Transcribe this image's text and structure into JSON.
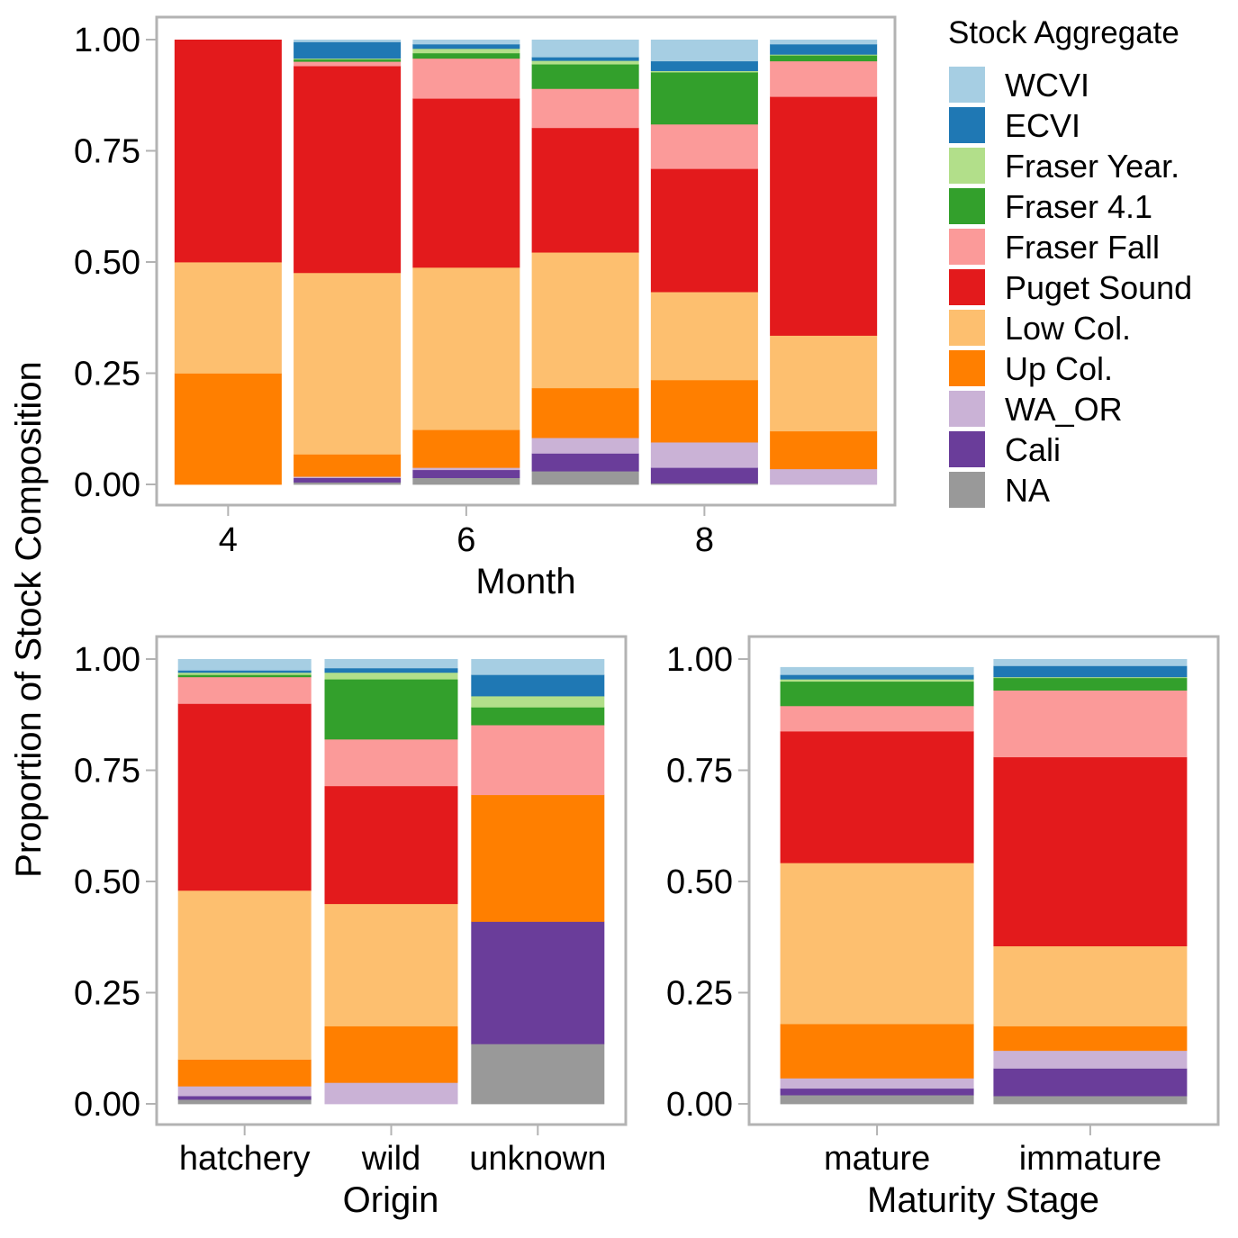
{
  "shared": {
    "ylabel": "Proportion of Stock Composition",
    "ylim": [
      0,
      1
    ],
    "yticks": [
      "0.00",
      "0.25",
      "0.50",
      "0.75",
      "1.00"
    ],
    "ytick_values": [
      0,
      0.25,
      0.5,
      0.75,
      1
    ]
  },
  "legend": {
    "title": "Stock Aggregate",
    "placement": "right of top panel",
    "items": [
      {
        "label": "WCVI",
        "color": "#a6cee3"
      },
      {
        "label": "ECVI",
        "color": "#1f78b4"
      },
      {
        "label": "Fraser Year.",
        "color": "#b2df8a"
      },
      {
        "label": "Fraser 4.1",
        "color": "#33a02c"
      },
      {
        "label": "Fraser Fall",
        "color": "#fb9a99"
      },
      {
        "label": "Puget Sound",
        "color": "#e31a1c"
      },
      {
        "label": "Low Col.",
        "color": "#fdbf6f"
      },
      {
        "label": "Up Col.",
        "color": "#ff7f00"
      },
      {
        "label": "WA_OR",
        "color": "#cab2d6"
      },
      {
        "label": "Cali",
        "color": "#6a3d9a"
      },
      {
        "label": "NA",
        "color": "#999999"
      }
    ]
  },
  "chart_data": [
    {
      "type": "bar",
      "stacked": true,
      "xlabel": "Month",
      "x_type": "numeric",
      "x": [
        4,
        5,
        6,
        7,
        8,
        9
      ],
      "xticks": [
        "4",
        "6",
        "8"
      ],
      "xtick_values": [
        4,
        6,
        8
      ],
      "xlim": [
        3.4,
        9.6
      ],
      "ylabel": "Proportion of Stock Composition",
      "ylim": [
        0,
        1
      ],
      "stack_order_bottom_to_top": [
        "NA",
        "Cali",
        "WA_OR",
        "Up Col.",
        "Low Col.",
        "Puget Sound",
        "Fraser Fall",
        "Fraser 4.1",
        "Fraser Year.",
        "ECVI",
        "WCVI"
      ],
      "series": [
        {
          "name": "NA",
          "values": [
            0.0,
            0.005,
            0.015,
            0.03,
            0.003,
            0.0
          ]
        },
        {
          "name": "Cali",
          "values": [
            0.0,
            0.01,
            0.018,
            0.04,
            0.035,
            0.0
          ]
        },
        {
          "name": "WA_OR",
          "values": [
            0.0,
            0.003,
            0.005,
            0.035,
            0.057,
            0.035
          ]
        },
        {
          "name": "Up Col.",
          "values": [
            0.25,
            0.05,
            0.085,
            0.112,
            0.14,
            0.085
          ]
        },
        {
          "name": "Low Col.",
          "values": [
            0.25,
            0.408,
            0.365,
            0.305,
            0.198,
            0.215
          ]
        },
        {
          "name": "Puget Sound",
          "values": [
            0.5,
            0.465,
            0.38,
            0.28,
            0.277,
            0.537
          ]
        },
        {
          "name": "Fraser Fall",
          "values": [
            0.0,
            0.01,
            0.09,
            0.088,
            0.1,
            0.08
          ]
        },
        {
          "name": "Fraser 4.1",
          "values": [
            0.0,
            0.005,
            0.012,
            0.055,
            0.117,
            0.013
          ]
        },
        {
          "name": "Fraser Year.",
          "values": [
            0.0,
            0.002,
            0.01,
            0.008,
            0.003,
            0.002
          ]
        },
        {
          "name": "ECVI",
          "values": [
            0.0,
            0.037,
            0.01,
            0.008,
            0.022,
            0.023
          ]
        },
        {
          "name": "WCVI",
          "values": [
            0.0,
            0.005,
            0.01,
            0.039,
            0.048,
            0.01
          ]
        }
      ]
    },
    {
      "type": "bar",
      "stacked": true,
      "xlabel": "Origin",
      "x_type": "categorical",
      "categories": [
        "hatchery",
        "wild",
        "unknown"
      ],
      "ylabel": "Proportion of Stock Composition",
      "ylim": [
        0,
        1
      ],
      "series": [
        {
          "name": "NA",
          "values": [
            0.01,
            0.0,
            0.135
          ]
        },
        {
          "name": "Cali",
          "values": [
            0.008,
            0.0,
            0.275
          ]
        },
        {
          "name": "WA_OR",
          "values": [
            0.022,
            0.048,
            0.0
          ]
        },
        {
          "name": "Up Col.",
          "values": [
            0.06,
            0.127,
            0.285
          ]
        },
        {
          "name": "Low Col.",
          "values": [
            0.38,
            0.275,
            0.0
          ]
        },
        {
          "name": "Puget Sound",
          "values": [
            0.42,
            0.265,
            0.0
          ]
        },
        {
          "name": "Fraser Fall",
          "values": [
            0.06,
            0.105,
            0.157
          ]
        },
        {
          "name": "Fraser 4.1",
          "values": [
            0.005,
            0.135,
            0.04
          ]
        },
        {
          "name": "Fraser Year.",
          "values": [
            0.005,
            0.015,
            0.025
          ]
        },
        {
          "name": "ECVI",
          "values": [
            0.005,
            0.01,
            0.048
          ]
        },
        {
          "name": "WCVI",
          "values": [
            0.025,
            0.02,
            0.035
          ]
        }
      ]
    },
    {
      "type": "bar",
      "stacked": true,
      "xlabel": "Maturity Stage",
      "x_type": "categorical",
      "categories": [
        "mature",
        "immature"
      ],
      "ylabel": "Proportion of Stock Composition",
      "ylim": [
        0,
        1
      ],
      "series": [
        {
          "name": "NA",
          "values": [
            0.02,
            0.018
          ]
        },
        {
          "name": "Cali",
          "values": [
            0.015,
            0.062
          ]
        },
        {
          "name": "WA_OR",
          "values": [
            0.023,
            0.04
          ]
        },
        {
          "name": "Up Col.",
          "values": [
            0.122,
            0.055
          ]
        },
        {
          "name": "Low Col.",
          "values": [
            0.362,
            0.18
          ]
        },
        {
          "name": "Puget Sound",
          "values": [
            0.296,
            0.425
          ]
        },
        {
          "name": "Fraser Fall",
          "values": [
            0.057,
            0.15
          ]
        },
        {
          "name": "Fraser 4.1",
          "values": [
            0.055,
            0.028
          ]
        },
        {
          "name": "Fraser Year.",
          "values": [
            0.005,
            0.002
          ]
        },
        {
          "name": "ECVI",
          "values": [
            0.01,
            0.025
          ]
        },
        {
          "name": "WCVI",
          "values": [
            0.017,
            0.015
          ]
        }
      ]
    }
  ]
}
